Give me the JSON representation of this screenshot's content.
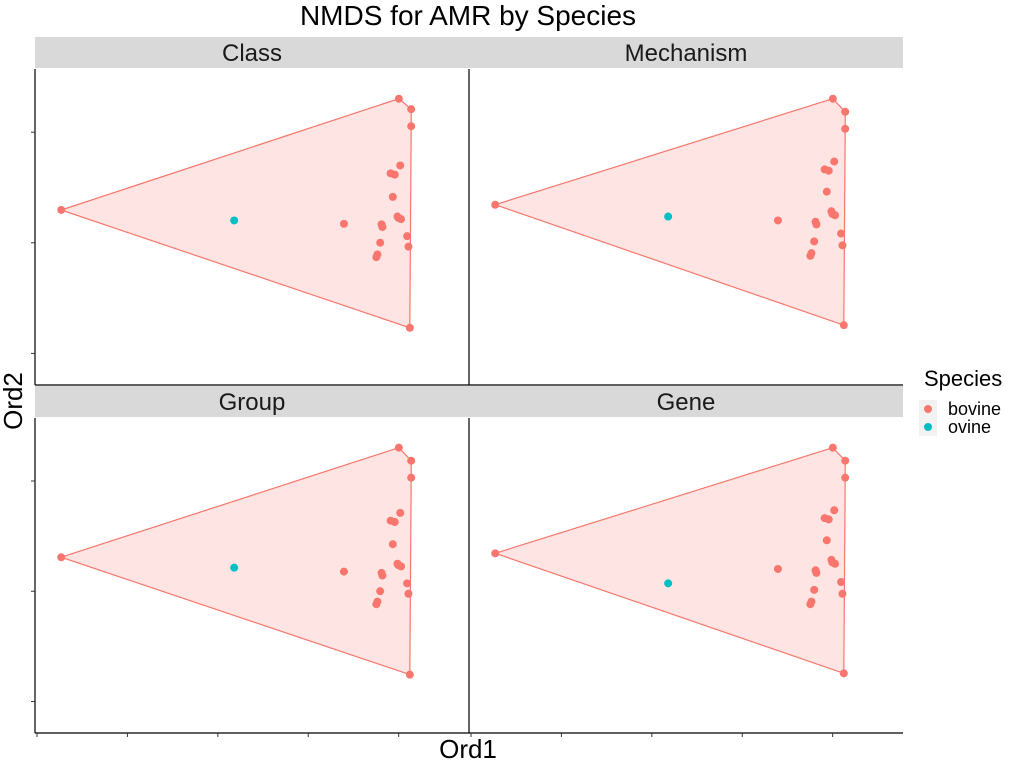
{
  "chart_data": {
    "type": "scatter",
    "title": "NMDS for AMR by Species",
    "xlabel": "Ord1",
    "ylabel": "Ord2",
    "xlim": [
      -1.0,
      0.45
    ],
    "ylim": [
      -0.55,
      0.55
    ],
    "hull": true,
    "legend": {
      "title": "Species",
      "position": "right",
      "entries": [
        {
          "name": "bovine",
          "color": "#F8766D"
        },
        {
          "name": "ovine",
          "color": "#00BFC4"
        }
      ]
    },
    "panels": [
      {
        "name": "Class",
        "series": [
          {
            "name": "bovine",
            "x": [
              0.26,
              0.305,
              0.305,
              -0.97,
              0.3,
              0.23,
              0.265,
              0.245,
              0.238,
              0.255,
              0.258,
              0.268,
              0.06,
              0.197,
              0.2,
              0.29,
              0.295,
              0.192,
              0.182,
              0.178
            ],
            "y": [
              0.49,
              0.45,
              0.385,
              0.065,
              -0.385,
              0.205,
              0.235,
              0.2,
              0.115,
              0.04,
              0.035,
              0.03,
              0.012,
              0.01,
              0.0,
              -0.035,
              -0.075,
              -0.06,
              -0.105,
              -0.115
            ]
          },
          {
            "name": "ovine",
            "x": [
              -0.34
            ],
            "y": [
              0.025
            ]
          }
        ]
      },
      {
        "name": "Mechanism",
        "series": [
          {
            "name": "bovine",
            "x": [
              0.26,
              0.305,
              0.305,
              -0.97,
              0.3,
              0.23,
              0.265,
              0.245,
              0.238,
              0.255,
              0.258,
              0.268,
              0.06,
              0.197,
              0.2,
              0.29,
              0.295,
              0.192,
              0.182,
              0.178
            ],
            "y": [
              0.49,
              0.44,
              0.375,
              0.085,
              -0.375,
              0.22,
              0.25,
              0.215,
              0.135,
              0.06,
              0.05,
              0.045,
              0.025,
              0.02,
              0.01,
              -0.025,
              -0.07,
              -0.055,
              -0.1,
              -0.11
            ]
          },
          {
            "name": "ovine",
            "x": [
              -0.34
            ],
            "y": [
              0.04
            ]
          }
        ]
      },
      {
        "name": "Group",
        "series": [
          {
            "name": "bovine",
            "x": [
              0.26,
              0.305,
              0.305,
              -0.97,
              0.3,
              0.23,
              0.265,
              0.245,
              0.238,
              0.255,
              0.258,
              0.268,
              0.06,
              0.197,
              0.2,
              0.29,
              0.295,
              0.192,
              0.182,
              0.178
            ],
            "y": [
              0.49,
              0.44,
              0.375,
              0.07,
              -0.38,
              0.21,
              0.24,
              0.205,
              0.12,
              0.045,
              0.04,
              0.035,
              0.015,
              0.01,
              0.0,
              -0.03,
              -0.07,
              -0.06,
              -0.1,
              -0.11
            ]
          },
          {
            "name": "ovine",
            "x": [
              -0.34
            ],
            "y": [
              0.03
            ]
          }
        ]
      },
      {
        "name": "Gene",
        "series": [
          {
            "name": "bovine",
            "x": [
              0.26,
              0.305,
              0.305,
              -0.97,
              0.3,
              0.23,
              0.265,
              0.245,
              0.238,
              0.255,
              0.258,
              0.268,
              0.06,
              0.197,
              0.2,
              0.29,
              0.295,
              0.192,
              0.182,
              0.178
            ],
            "y": [
              0.49,
              0.44,
              0.375,
              0.085,
              -0.375,
              0.22,
              0.25,
              0.215,
              0.135,
              0.06,
              0.05,
              0.045,
              0.025,
              0.02,
              0.01,
              -0.025,
              -0.07,
              -0.055,
              -0.1,
              -0.11
            ]
          },
          {
            "name": "ovine",
            "x": [
              -0.34
            ],
            "y": [
              -0.03
            ]
          }
        ]
      }
    ]
  }
}
